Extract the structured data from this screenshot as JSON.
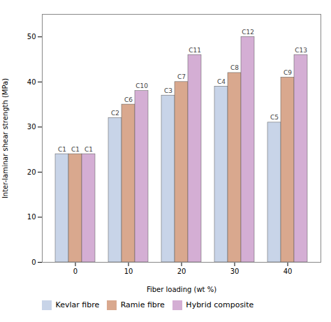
{
  "chart_data": {
    "type": "bar",
    "categories": [
      0,
      10,
      20,
      30,
      40
    ],
    "series": [
      {
        "name": "Kevlar fibre",
        "color": "#c8d4e8",
        "values": [
          24,
          32,
          37,
          39,
          31
        ],
        "value_labels": [
          "C1",
          "C2",
          "C3",
          "C4",
          "C5"
        ]
      },
      {
        "name": "Ramie fibre",
        "color": "#d9a88e",
        "values": [
          24,
          35,
          40,
          42,
          41
        ],
        "value_labels": [
          "C1",
          "C6",
          "C7",
          "C8",
          "C9"
        ]
      },
      {
        "name": "Hybrid composite",
        "color": "#d4aed4",
        "values": [
          24,
          38,
          46,
          50,
          46
        ],
        "value_labels": [
          "C1",
          "C10",
          "C11",
          "C12",
          "C13"
        ]
      }
    ],
    "xlabel": "Fiber loading (wt %)",
    "ylabel": "Inter-laminar shear strength (MPa)",
    "ylim": [
      0,
      55
    ],
    "yticks": [
      0,
      10,
      20,
      30,
      40,
      50
    ],
    "grid": false,
    "legend": "bottom"
  }
}
